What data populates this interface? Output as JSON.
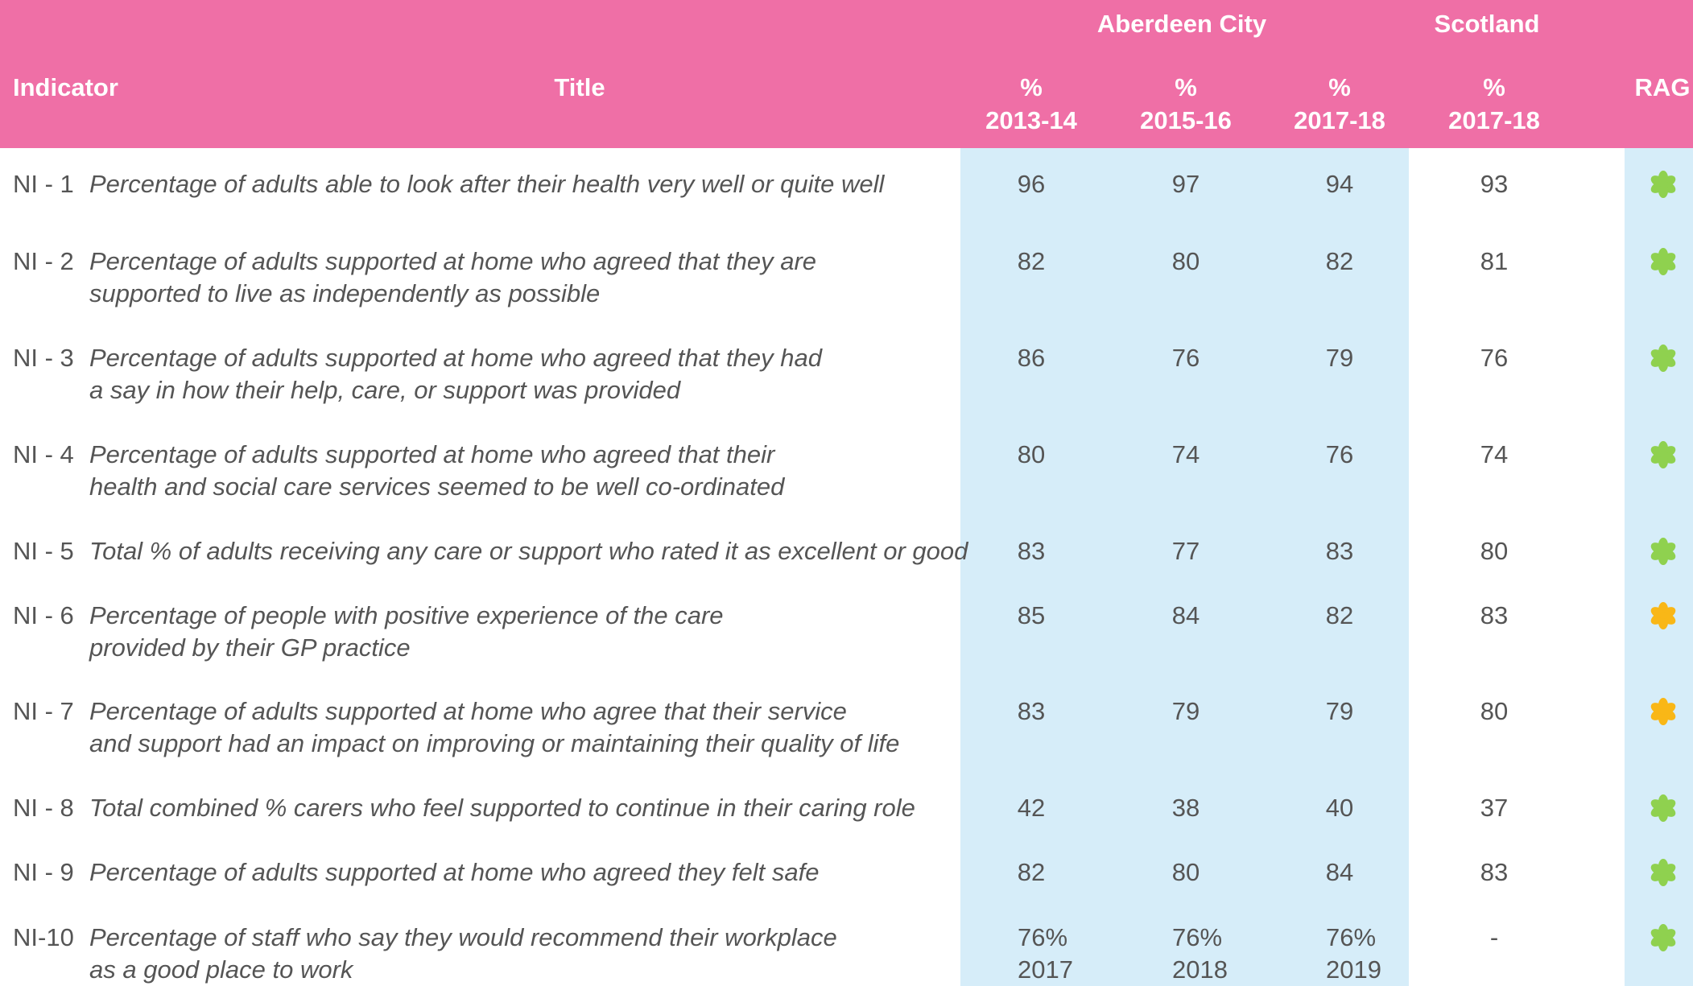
{
  "table": {
    "groups": [
      "Aberdeen City",
      "Scotland"
    ],
    "header": {
      "indicator": "Indicator",
      "title": "Title",
      "rag": "RAG"
    },
    "columns": [
      {
        "unit": "%",
        "period": "2013-14"
      },
      {
        "unit": "%",
        "period": "2015-16"
      },
      {
        "unit": "%",
        "period": "2017-18"
      },
      {
        "unit": "%",
        "period": "2017-18"
      }
    ],
    "rows": [
      {
        "indicator": "NI - 1",
        "title": [
          "Percentage of adults able to look after their health very well or quite well"
        ],
        "values": [
          [
            "96"
          ],
          [
            "97"
          ],
          [
            "94"
          ],
          [
            "93"
          ]
        ],
        "rag": "green"
      },
      {
        "indicator": "NI - 2",
        "title": [
          "Percentage of adults supported at home who agreed that they are",
          "supported to live as independently as possible"
        ],
        "values": [
          [
            "82"
          ],
          [
            "80"
          ],
          [
            "82"
          ],
          [
            "81"
          ]
        ],
        "rag": "green"
      },
      {
        "indicator": "NI - 3",
        "title": [
          "Percentage of adults supported at home who agreed that they had",
          "a say in how their help, care, or support was provided"
        ],
        "values": [
          [
            "86"
          ],
          [
            "76"
          ],
          [
            "79"
          ],
          [
            "76"
          ]
        ],
        "rag": "green"
      },
      {
        "indicator": "NI - 4",
        "title": [
          "Percentage of adults supported at home who agreed that their",
          "health and social care services seemed to be well co-ordinated"
        ],
        "values": [
          [
            "80"
          ],
          [
            "74"
          ],
          [
            "76"
          ],
          [
            "74"
          ]
        ],
        "rag": "green"
      },
      {
        "indicator": "NI - 5",
        "title": [
          "Total % of adults receiving any care or support who rated it as excellent or good"
        ],
        "values": [
          [
            "83"
          ],
          [
            "77"
          ],
          [
            "83"
          ],
          [
            "80"
          ]
        ],
        "rag": "green"
      },
      {
        "indicator": "NI - 6",
        "title": [
          "Percentage of people with positive experience of the care",
          "provided by their GP practice"
        ],
        "values": [
          [
            "85"
          ],
          [
            "84"
          ],
          [
            "82"
          ],
          [
            "83"
          ]
        ],
        "rag": "amber"
      },
      {
        "indicator": "NI - 7",
        "title": [
          "Percentage of adults supported at home who agree that their service",
          "and support had an impact on improving or maintaining their quality of life"
        ],
        "values": [
          [
            "83"
          ],
          [
            "79"
          ],
          [
            "79"
          ],
          [
            "80"
          ]
        ],
        "rag": "amber"
      },
      {
        "indicator": "NI - 8",
        "title": [
          "Total combined % carers who feel supported to continue in their caring role"
        ],
        "values": [
          [
            "42"
          ],
          [
            "38"
          ],
          [
            "40"
          ],
          [
            "37"
          ]
        ],
        "rag": "green"
      },
      {
        "indicator": "NI - 9",
        "title": [
          "Percentage of adults supported at home who agreed they felt safe"
        ],
        "values": [
          [
            "82"
          ],
          [
            "80"
          ],
          [
            "84"
          ],
          [
            "83"
          ]
        ],
        "rag": "green"
      },
      {
        "indicator": "NI-10",
        "title": [
          "Percentage of staff who say they would recommend their workplace",
          "as a good place to work"
        ],
        "values": [
          [
            "76%",
            "2017"
          ],
          [
            "76%",
            "2018"
          ],
          [
            "76%",
            "2019"
          ],
          [
            "-"
          ]
        ],
        "rag": "green"
      }
    ]
  }
}
